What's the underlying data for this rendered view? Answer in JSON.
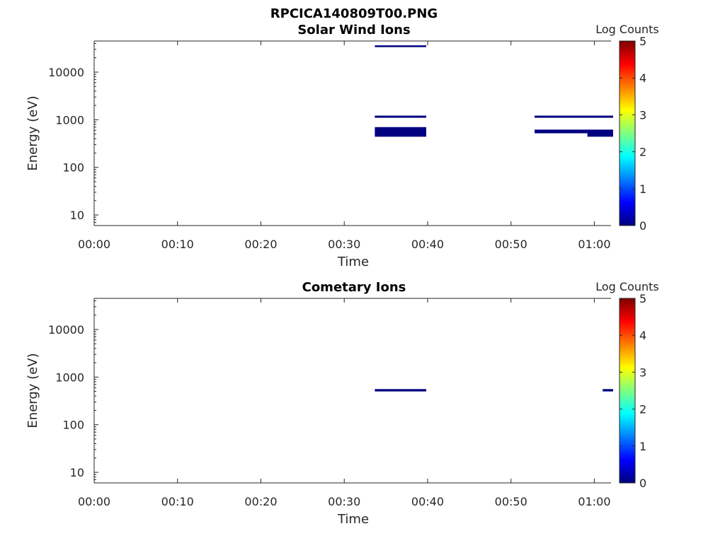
{
  "figure": {
    "filename": "RPCICA140809T00.PNG"
  },
  "colors": {
    "data_mark": "#000080",
    "axis": "#262626",
    "colormap": [
      "#00007f",
      "#0000ff",
      "#007fff",
      "#00ffff",
      "#7fff7f",
      "#ffff00",
      "#ff7f00",
      "#ff0000",
      "#7f0000"
    ]
  },
  "chart_data": [
    {
      "type": "heatmap",
      "title": "Solar Wind Ions",
      "xlabel": "Time",
      "ylabel": "Energy (eV)",
      "yscale": "log",
      "ylim": [
        6,
        45000
      ],
      "xlim": [
        "00:00",
        "01:02"
      ],
      "xticks": [
        "00:00",
        "00:10",
        "00:20",
        "00:30",
        "00:40",
        "00:50",
        "01:00"
      ],
      "yticks": [
        "10",
        "100",
        "1000",
        "10000"
      ],
      "colorbar": {
        "label": "Log Counts",
        "range": [
          0,
          5
        ],
        "ticks": [
          "0",
          "1",
          "2",
          "3",
          "4",
          "5"
        ]
      },
      "segments": [
        {
          "t0": "00:33:40",
          "t1": "00:39:50",
          "e_low": 33500,
          "e_high": 36500,
          "log_counts": 0
        },
        {
          "t0": "00:33:40",
          "t1": "00:39:50",
          "e_low": 1100,
          "e_high": 1220,
          "log_counts": 0
        },
        {
          "t0": "00:33:40",
          "t1": "00:39:50",
          "e_low": 440,
          "e_high": 700,
          "log_counts": 0
        },
        {
          "t0": "00:52:50",
          "t1": "01:02:15",
          "e_low": 1100,
          "e_high": 1220,
          "log_counts": 0
        },
        {
          "t0": "00:52:50",
          "t1": "00:59:10",
          "e_low": 520,
          "e_high": 620,
          "log_counts": 0
        },
        {
          "t0": "00:59:10",
          "t1": "01:02:15",
          "e_low": 440,
          "e_high": 620,
          "log_counts": 0
        }
      ]
    },
    {
      "type": "heatmap",
      "title": "Cometary Ions",
      "xlabel": "Time",
      "ylabel": "Energy (eV)",
      "yscale": "log",
      "ylim": [
        6,
        45000
      ],
      "xlim": [
        "00:00",
        "01:02"
      ],
      "xticks": [
        "00:00",
        "00:10",
        "00:20",
        "00:30",
        "00:40",
        "00:50",
        "01:00"
      ],
      "yticks": [
        "10",
        "100",
        "1000",
        "10000"
      ],
      "colorbar": {
        "label": "Log Counts",
        "range": [
          0,
          5
        ],
        "ticks": [
          "0",
          "1",
          "2",
          "3",
          "4",
          "5"
        ]
      },
      "segments": [
        {
          "t0": "00:33:40",
          "t1": "00:39:50",
          "e_low": 500,
          "e_high": 560,
          "log_counts": 0
        },
        {
          "t0": "01:01:00",
          "t1": "01:02:15",
          "e_low": 500,
          "e_high": 560,
          "log_counts": 0
        }
      ]
    }
  ]
}
